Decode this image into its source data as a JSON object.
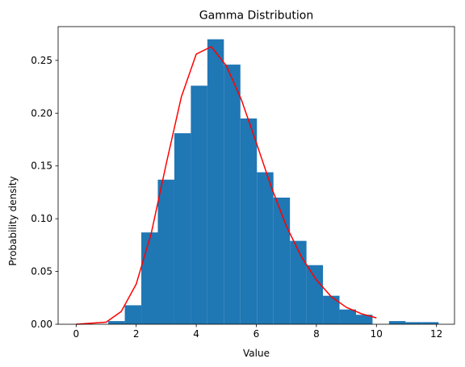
{
  "chart_data": {
    "type": "bar",
    "title": "Gamma Distribution",
    "xlabel": "Value",
    "ylabel": "Probability density",
    "xlim": [
      -0.6,
      12.6
    ],
    "ylim": [
      0,
      0.282
    ],
    "xticks": [
      0,
      2,
      4,
      6,
      8,
      10,
      12
    ],
    "xtick_labels": [
      "0",
      "2",
      "4",
      "6",
      "8",
      "10",
      "12"
    ],
    "yticks": [
      0,
      0.05,
      0.1,
      0.15,
      0.2,
      0.25
    ],
    "ytick_labels": [
      "0.00",
      "0.05",
      "0.10",
      "0.15",
      "0.20",
      "0.25"
    ],
    "grid": false,
    "bar_color": "#1f77b4",
    "line_color": "#ff0000",
    "histogram": {
      "bin_edges": [
        1.07,
        1.62,
        2.17,
        2.72,
        3.27,
        3.82,
        4.37,
        4.92,
        5.47,
        6.02,
        6.57,
        7.12,
        7.67,
        8.22,
        8.77,
        9.32,
        9.87,
        10.42,
        10.97,
        11.52,
        12.07
      ],
      "values": [
        0.003,
        0.018,
        0.087,
        0.137,
        0.181,
        0.226,
        0.27,
        0.246,
        0.195,
        0.144,
        0.12,
        0.079,
        0.056,
        0.027,
        0.014,
        0.009,
        0.0,
        0.003,
        0.002,
        0.002
      ]
    },
    "series": [
      {
        "type": "line",
        "x": [
          0,
          1,
          1.5,
          2,
          2.5,
          3,
          3.5,
          4,
          4.5,
          5,
          5.5,
          6,
          6.5,
          7,
          7.5,
          8,
          8.5,
          9,
          9.5,
          10
        ],
        "y": [
          0.0,
          0.002,
          0.012,
          0.038,
          0.086,
          0.152,
          0.215,
          0.256,
          0.263,
          0.245,
          0.213,
          0.172,
          0.13,
          0.093,
          0.064,
          0.042,
          0.026,
          0.016,
          0.01,
          0.006
        ]
      }
    ]
  }
}
